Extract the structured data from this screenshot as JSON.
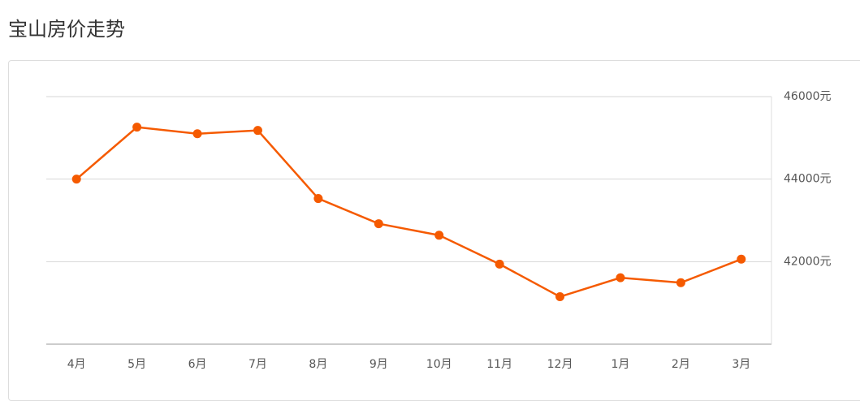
{
  "header": {
    "title": "宝山房价走势"
  },
  "chart_data": {
    "type": "line",
    "categories": [
      "4月",
      "5月",
      "6月",
      "7月",
      "8月",
      "9月",
      "10月",
      "11月",
      "12月",
      "1月",
      "2月",
      "3月"
    ],
    "series": [
      {
        "color": "#f55a00",
        "values": [
          44000,
          45260,
          45100,
          45180,
          43530,
          42920,
          42640,
          41940,
          41150,
          41610,
          41490,
          42060
        ]
      }
    ],
    "ylim": [
      40000,
      46000
    ],
    "yticks": [
      {
        "value": 42000,
        "label": "42000元"
      },
      {
        "value": 44000,
        "label": "44000元"
      },
      {
        "value": 46000,
        "label": "46000元"
      }
    ],
    "grid": true
  }
}
